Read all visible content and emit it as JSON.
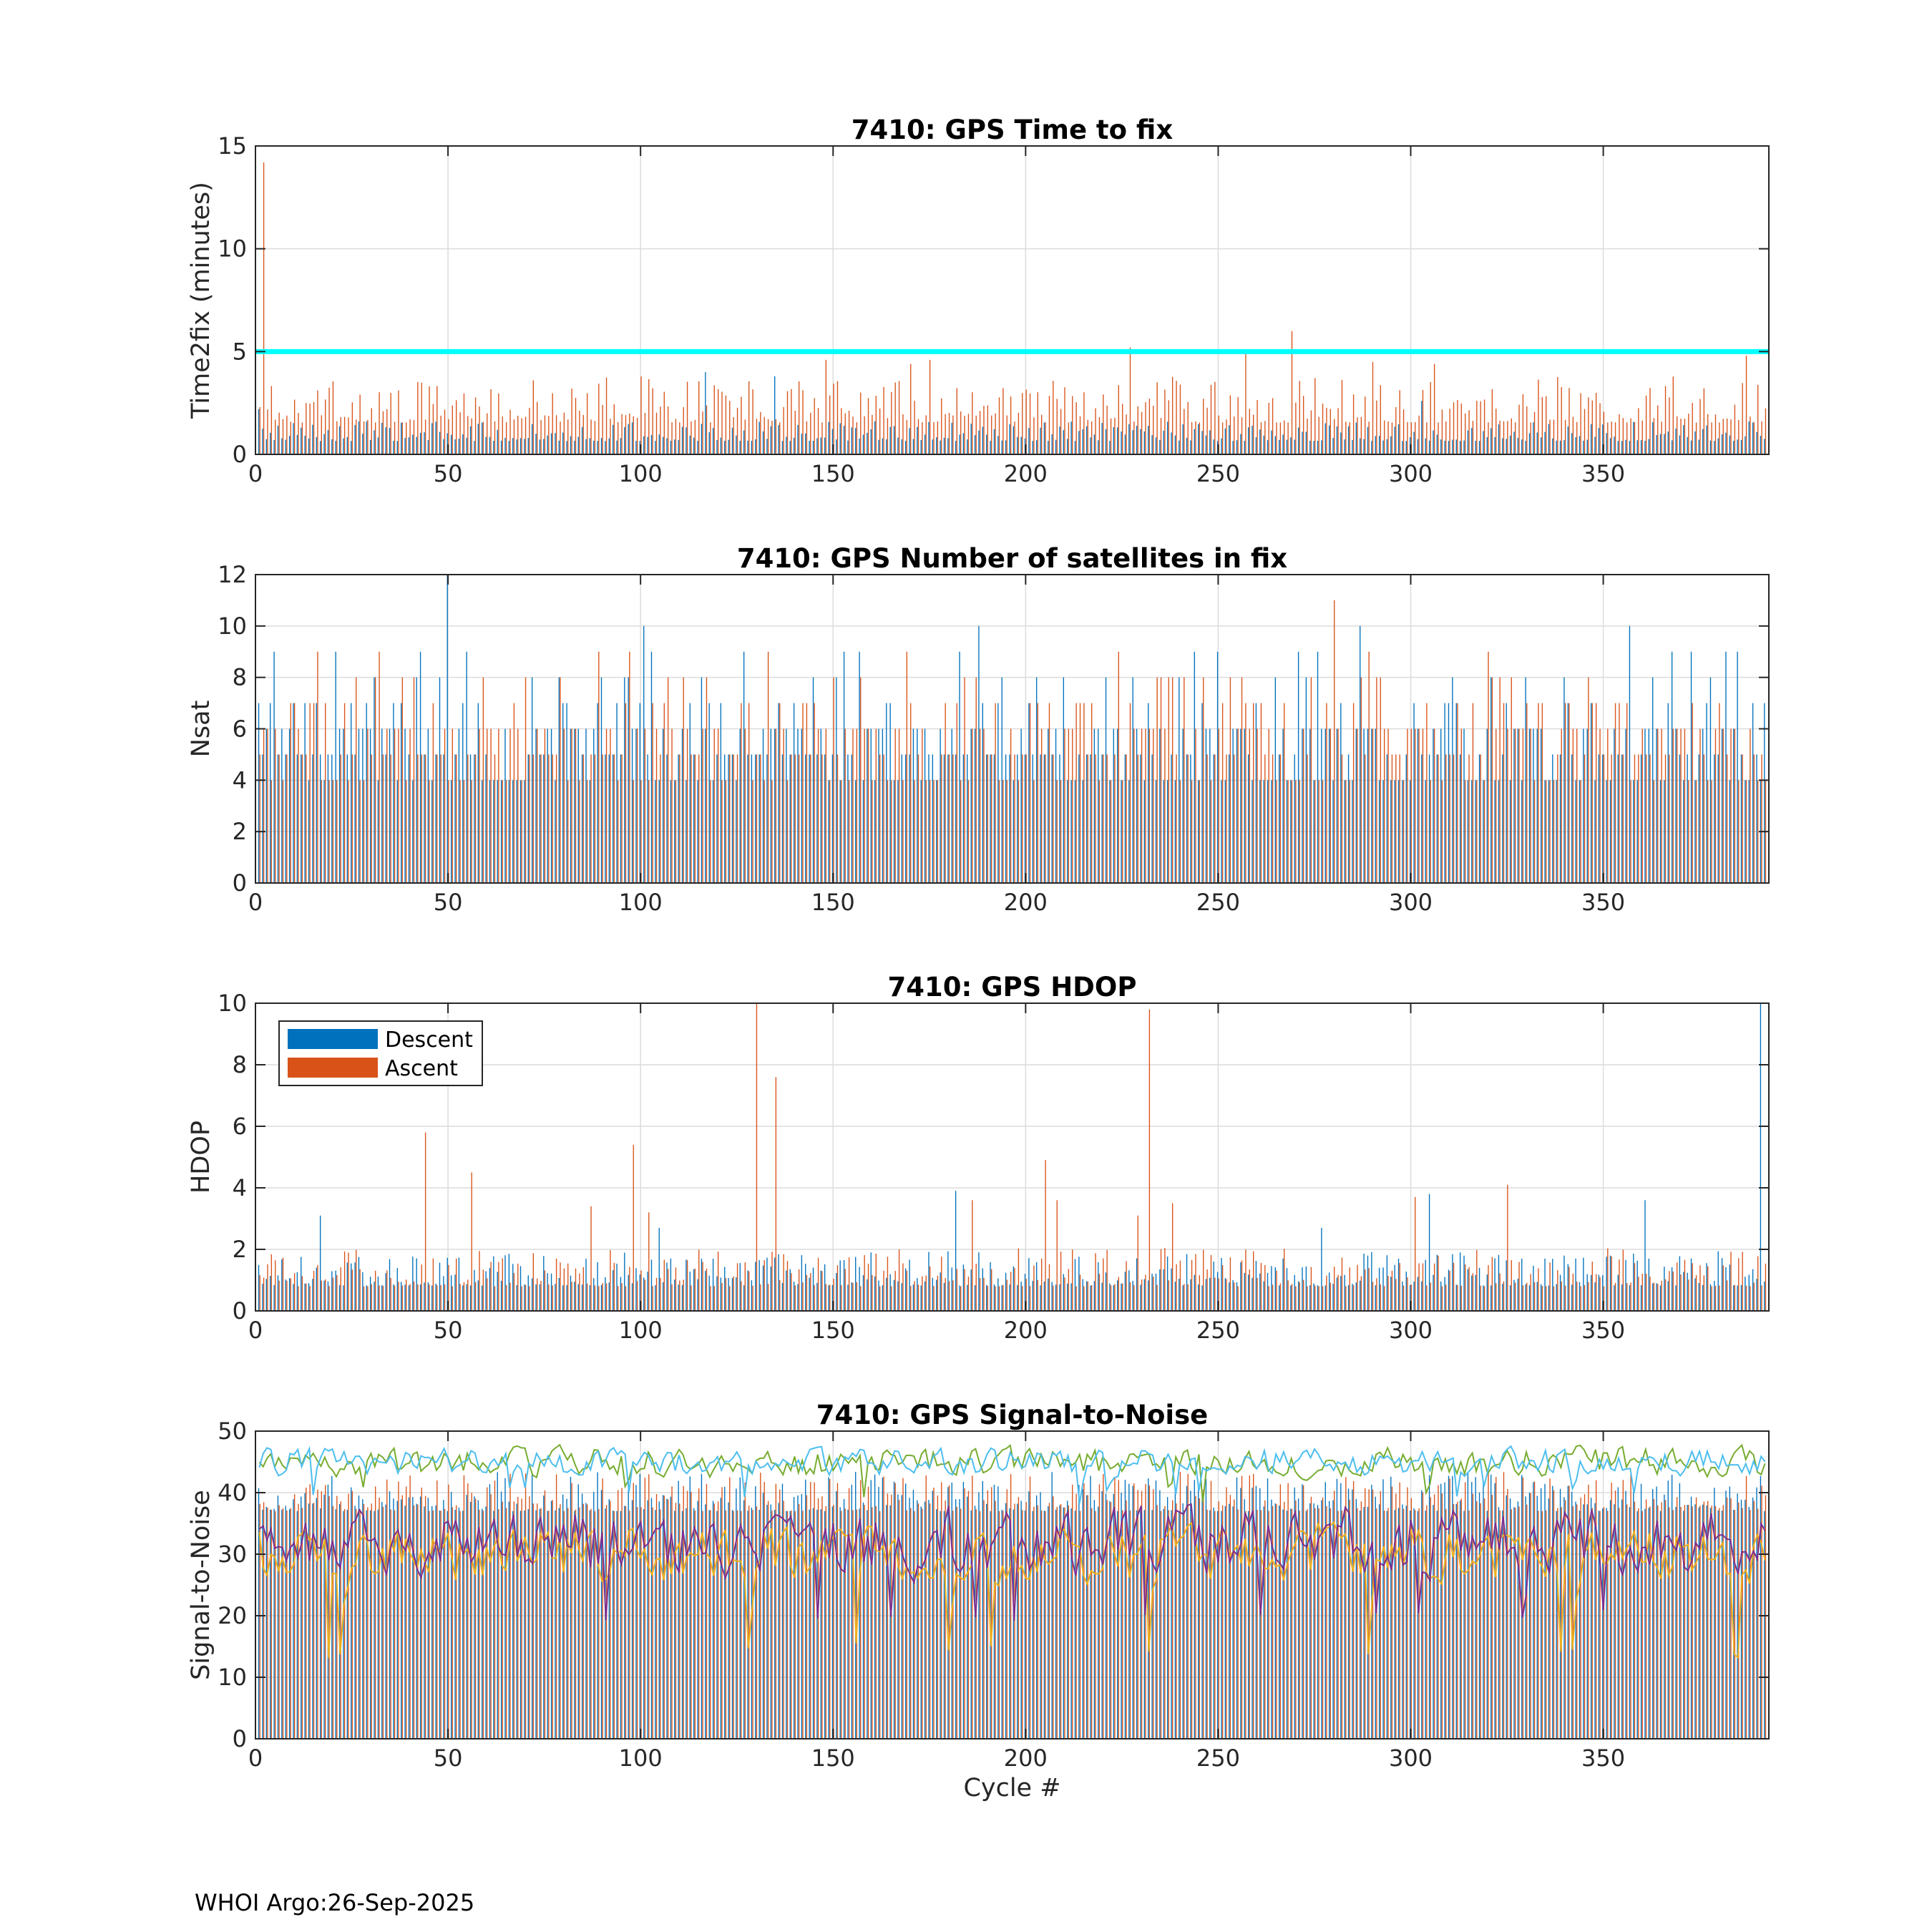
{
  "footer": "WHOI Argo:26-Sep-2025",
  "colors": {
    "descent": "#0072BD",
    "ascent": "#D95319",
    "threshold": "#00FFFF",
    "snr_lines": [
      "#EDB120",
      "#7E2F8E",
      "#77AC30",
      "#4DBEEE"
    ]
  },
  "chart_data": [
    {
      "type": "bar",
      "title": "7410: GPS Time to fix",
      "xlabel": "",
      "ylabel": "Time2fix (minutes)",
      "xlim": [
        0,
        393
      ],
      "ylim": [
        0,
        15
      ],
      "xticks": [
        0,
        50,
        100,
        150,
        200,
        250,
        300,
        350
      ],
      "yticks": [
        0,
        5,
        10,
        15
      ],
      "grid": true,
      "threshold": 5,
      "x_range": [
        1,
        392
      ],
      "series": [
        {
          "role": "descent",
          "baseline": 0.8,
          "spread": 0.6,
          "spikes": [
            [
              1,
              2.2
            ],
            [
              117,
              4.0
            ],
            [
              135,
              3.8
            ],
            [
              303,
              2.6
            ],
            [
              388,
              1.6
            ]
          ]
        },
        {
          "role": "ascent",
          "baseline": 1.9,
          "spread": 1.4,
          "spikes": [
            [
              2,
              14.2
            ],
            [
              148,
              4.6
            ],
            [
              170,
              4.4
            ],
            [
              175,
              4.6
            ],
            [
              227,
              5.2
            ],
            [
              257,
              5.0
            ],
            [
              269,
              6.0
            ],
            [
              290,
              4.5
            ],
            [
              306,
              4.4
            ],
            [
              387,
              4.8
            ]
          ]
        }
      ]
    },
    {
      "type": "bar",
      "title": "7410: GPS Number of satellites in fix",
      "xlabel": "",
      "ylabel": "Nsat",
      "xlim": [
        0,
        393
      ],
      "ylim": [
        0,
        12
      ],
      "xticks": [
        0,
        50,
        100,
        150,
        200,
        250,
        300,
        350
      ],
      "yticks": [
        0,
        2,
        4,
        6,
        8,
        10,
        12
      ],
      "grid": true,
      "x_range": [
        1,
        392
      ],
      "series": [
        {
          "role": "descent",
          "levels": [
            4,
            5,
            6,
            7,
            8,
            9
          ],
          "weights": [
            3,
            4,
            4,
            2,
            1,
            0.4
          ],
          "spikes": [
            [
              50,
              12
            ],
            [
              101,
              10
            ],
            [
              188,
              10
            ],
            [
              287,
              10
            ],
            [
              357,
              10
            ],
            [
              276,
              9
            ],
            [
              55,
              9
            ],
            [
              127,
              9
            ],
            [
              153,
              9
            ],
            [
              373,
              9
            ],
            [
              385,
              9
            ]
          ]
        },
        {
          "role": "ascent",
          "levels": [
            4,
            5,
            6,
            7,
            8,
            9
          ],
          "weights": [
            3,
            4,
            4,
            2,
            1,
            0.3
          ],
          "spikes": [
            [
              280,
              11
            ],
            [
              32,
              9
            ],
            [
              320,
              9
            ],
            [
              97,
              9
            ]
          ]
        }
      ]
    },
    {
      "type": "bar",
      "title": "7410: GPS HDOP",
      "xlabel": "",
      "ylabel": "HDOP",
      "xlim": [
        0,
        393
      ],
      "ylim": [
        0,
        10
      ],
      "xticks": [
        0,
        50,
        100,
        150,
        200,
        250,
        300,
        350
      ],
      "yticks": [
        0,
        2,
        4,
        6,
        8,
        10
      ],
      "grid": true,
      "legend": {
        "position": "top-left",
        "entries": [
          "Descent",
          "Ascent"
        ]
      },
      "x_range": [
        1,
        392
      ],
      "series": [
        {
          "role": "descent",
          "baseline": 1.0,
          "spread": 0.7,
          "spikes": [
            [
              17,
              3.1
            ],
            [
              182,
              3.9
            ],
            [
              305,
              3.8
            ],
            [
              361,
              3.6
            ],
            [
              391,
              10.0
            ],
            [
              105,
              2.7
            ],
            [
              277,
              2.7
            ]
          ]
        },
        {
          "role": "ascent",
          "baseline": 1.0,
          "spread": 0.8,
          "spikes": [
            [
              44,
              5.8
            ],
            [
              56,
              4.5
            ],
            [
              98,
              5.4
            ],
            [
              130,
              10.0
            ],
            [
              135,
              7.6
            ],
            [
              205,
              4.9
            ],
            [
              208,
              3.6
            ],
            [
              232,
              9.8
            ],
            [
              238,
              3.5
            ],
            [
              301,
              3.7
            ],
            [
              325,
              4.1
            ],
            [
              87,
              3.4
            ],
            [
              102,
              3.2
            ],
            [
              186,
              3.6
            ],
            [
              229,
              3.1
            ]
          ]
        }
      ]
    },
    {
      "type": "bar",
      "title": "7410: GPS Signal-to-Noise",
      "xlabel": "Cycle #",
      "ylabel": "Signal-to-Noise",
      "xlim": [
        0,
        393
      ],
      "ylim": [
        0,
        50
      ],
      "xticks": [
        0,
        50,
        100,
        150,
        200,
        250,
        300,
        350
      ],
      "yticks": [
        0,
        10,
        20,
        30,
        40,
        50
      ],
      "grid": true,
      "x_range": [
        1,
        392
      ],
      "series": [
        {
          "role": "descent",
          "baseline": 38,
          "spread": 4
        },
        {
          "role": "ascent",
          "baseline": 38,
          "spread": 4
        }
      ],
      "lines": [
        {
          "color_index": 0,
          "mean": 30,
          "amp": 5,
          "min": 13
        },
        {
          "color_index": 1,
          "mean": 32,
          "amp": 6,
          "min": 18
        },
        {
          "color_index": 2,
          "mean": 45,
          "amp": 2.6,
          "min": 38
        },
        {
          "color_index": 3,
          "mean": 45,
          "amp": 2.4,
          "min": 38
        }
      ]
    }
  ]
}
